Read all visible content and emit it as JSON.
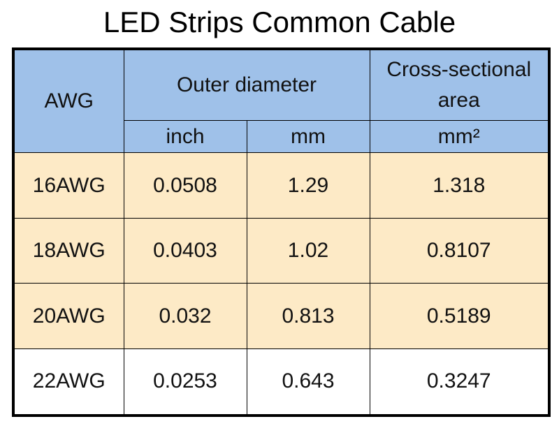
{
  "title": "LED Strips Common Cable",
  "header": {
    "awg": "AWG",
    "outer_diameter": "Outer diameter",
    "cross_sectional_line1": "Cross-sectional",
    "cross_sectional_line2": "area",
    "unit_inch": "inch",
    "unit_mm": "mm",
    "unit_mm2": "mm²"
  },
  "rows": [
    {
      "awg": "16AWG",
      "inch": "0.0508",
      "mm": "1.29",
      "area": "1.318"
    },
    {
      "awg": "18AWG",
      "inch": "0.0403",
      "mm": "1.02",
      "area": "0.8107"
    },
    {
      "awg": "20AWG",
      "inch": "0.032",
      "mm": "0.813",
      "area": "0.5189"
    },
    {
      "awg": "22AWG",
      "inch": "0.0253",
      "mm": "0.643",
      "area": "0.3247"
    }
  ],
  "colors": {
    "header_bg": "#9fc1e9",
    "tan_row_bg": "#fdeac6",
    "white_row_bg": "#ffffff",
    "border": "#000000"
  }
}
